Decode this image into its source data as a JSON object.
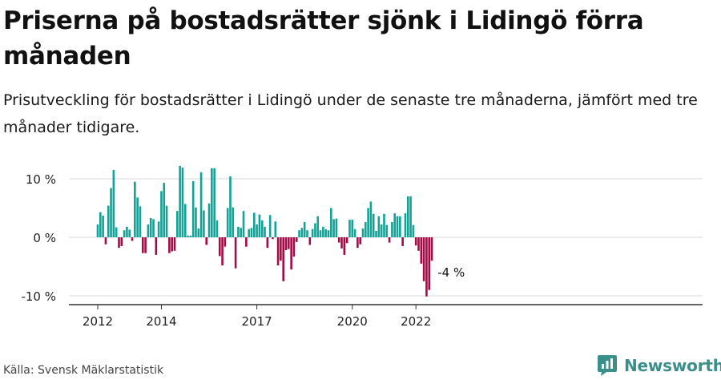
{
  "title": "Priserna på bostadsrätter sjönk i Lidingö förra månaden",
  "subtitle": "Prisutveckling för bostadsrätter i Lidingö under de senaste tre månaderna, jämfört med tre månader tidigare.",
  "source": "Källa: Svensk Mäklarstatistik",
  "brand": {
    "name": "Newsworthy",
    "logo_icon": "newsworthy-logo-icon"
  },
  "colors": {
    "positive": "#14a196",
    "negative": "#a40a45",
    "grid": "#d9d9d9",
    "axis": "#333333"
  },
  "chart_data": {
    "type": "bar",
    "title": "",
    "xlabel": "",
    "ylabel": "",
    "ylim": [
      -10.5,
      12.5
    ],
    "yticks": [
      10,
      0,
      -10
    ],
    "ytick_labels": [
      "10 %",
      "0 %",
      "-10 %"
    ],
    "xticks": [
      "2012",
      "2014",
      "2017",
      "2020",
      "2022"
    ],
    "tick_months": [
      "2012-01",
      "2014-01",
      "2017-01",
      "2020-01",
      "2022-01"
    ],
    "start_month": "2012-01",
    "end_month": "2023-02",
    "grid": true,
    "legend": "none",
    "annotation": {
      "text": "-4 %",
      "month": "2023-02"
    },
    "values": [
      2.2,
      4.3,
      3.7,
      -1.2,
      5.4,
      8.4,
      11.5,
      1.7,
      -1.8,
      -1.5,
      1.2,
      1.8,
      1.3,
      -0.6,
      9.5,
      6.8,
      5.3,
      -2.7,
      -2.7,
      2.2,
      3.3,
      3.1,
      -3.0,
      2.7,
      7.9,
      9.3,
      5.4,
      -2.7,
      -2.4,
      -2.3,
      4.5,
      12.2,
      11.9,
      5.7,
      0.3,
      0.3,
      9.6,
      5.1,
      1.5,
      11.1,
      4.6,
      -1.3,
      5.8,
      11.8,
      11.8,
      2.9,
      -3.2,
      -4.8,
      -1.6,
      5.0,
      10.4,
      5.1,
      -5.3,
      1.8,
      1.6,
      4.5,
      -1.6,
      1.4,
      1.6,
      4.2,
      2.2,
      3.9,
      2.9,
      1.8,
      -1.8,
      3.8,
      -0.3,
      2.7,
      -4.8,
      -4.0,
      -7.5,
      -2.2,
      -2.0,
      -5.5,
      -3.3,
      -0.8,
      1.2,
      1.6,
      2.6,
      1.2,
      -1.3,
      1.4,
      2.4,
      3.6,
      1.2,
      1.8,
      1.4,
      1.2,
      5.0,
      3.1,
      3.2,
      -0.9,
      -1.9,
      -3.0,
      -1.0,
      3.0,
      3.0,
      1.4,
      -1.8,
      -1.2,
      1.5,
      2.6,
      5.0,
      6.1,
      4.0,
      1.1,
      3.6,
      2.2,
      4.0,
      2.1,
      -0.9,
      2.6,
      4.1,
      3.6,
      3.6,
      -1.5,
      4.1,
      7.0,
      7.0,
      2.1,
      -1.4,
      -2.3,
      -4.5,
      -7.5,
      -10.1,
      -9.0,
      -4.0
    ]
  }
}
